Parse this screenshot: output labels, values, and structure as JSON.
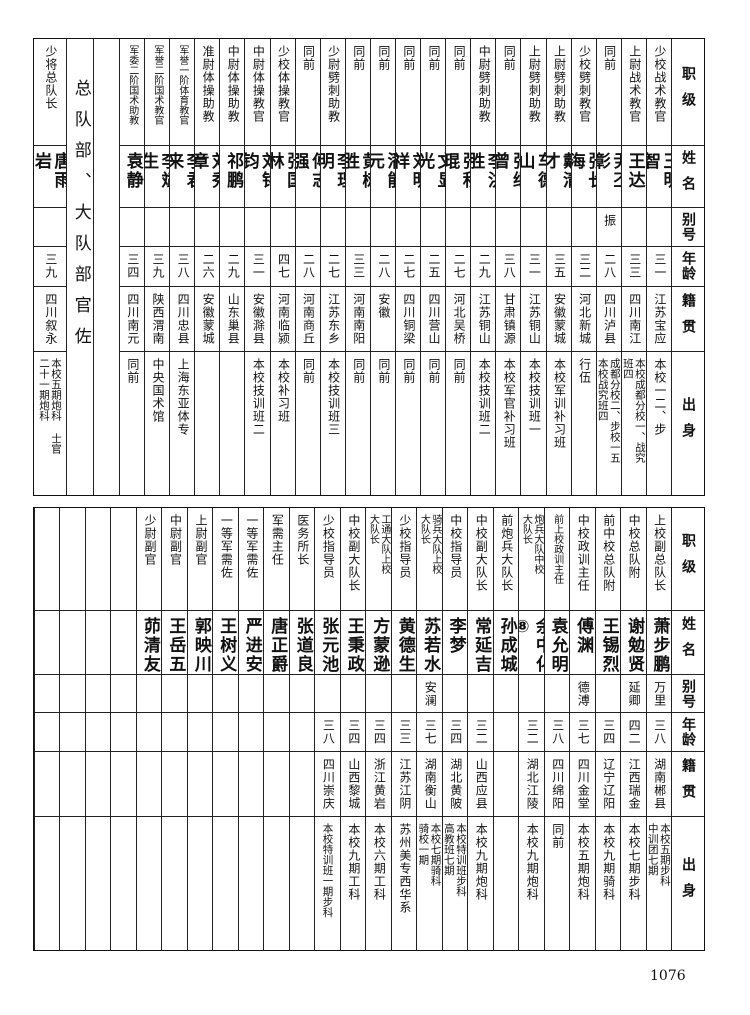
{
  "header": [
    "职级",
    "姓名",
    "别号",
    "年龄",
    "籍贯",
    "出身"
  ],
  "top": {
    "columns": [
      {
        "rank": "少校战术教官",
        "name": "王明智",
        "alias": "",
        "age": "三一",
        "native": "江苏宝应",
        "origin": "本校一二、步"
      },
      {
        "rank": "上尉战术教官",
        "name": "王达",
        "alias": "",
        "age": "三三",
        "native": "四川南江",
        "origin": "本校成都分校一、战究\n班四"
      },
      {
        "rank": "同前",
        "name": "尹丕彰",
        "alias": "振",
        "age": "二八",
        "native": "四川泸县",
        "origin": "成都分校二、步校一五\n本校战究班四"
      },
      {
        "rank": "少校劈刺教官",
        "name": "张长海",
        "alias": "",
        "age": "三二",
        "native": "河北新城",
        "origin": "行伍"
      },
      {
        "rank": "上尉劈刺助教",
        "name": "戴清才",
        "alias": "",
        "age": "三五",
        "native": "安徽蒙城",
        "origin": "本校军训补习班"
      },
      {
        "rank": "上尉劈刺助教",
        "name": "车德山",
        "alias": "",
        "age": "三一",
        "native": "江苏铜山",
        "origin": "本校技训班一"
      },
      {
        "rank": "同前",
        "name": "张继曾",
        "alias": "",
        "age": "三八",
        "native": "甘肃镇源",
        "origin": "本校军官补习班"
      },
      {
        "rank": "中尉劈刺助教",
        "name": "李洪胜",
        "alias": "",
        "age": "二九",
        "native": "江苏铜山",
        "origin": "本校技训班二"
      },
      {
        "rank": "同前",
        "name": "张积琨",
        "alias": "",
        "age": "二七",
        "native": "河北吴桥",
        "origin": "同前"
      },
      {
        "rank": "同前",
        "name": "文显光",
        "alias": "",
        "age": "二五",
        "native": "四川营山",
        "origin": "同前"
      },
      {
        "rank": "同前",
        "name": "刘明祥",
        "alias": "",
        "age": "二七",
        "native": "四川铜梁",
        "origin": "同前"
      },
      {
        "rank": "同前",
        "name": "潘能元",
        "alias": "",
        "age": "二八",
        "native": "安徽",
        "origin": "同前"
      },
      {
        "rank": "同前",
        "name": "黄树胜",
        "alias": "",
        "age": "三三",
        "native": "河南南阳",
        "origin": "同前"
      },
      {
        "rank": "少尉劈刺助教",
        "name": "李理明",
        "alias": "",
        "age": "二七",
        "native": "江苏东乡",
        "origin": "本校技训班三"
      },
      {
        "rank": "同前",
        "name": "傅志强",
        "alias": "",
        "age": "二八",
        "native": "河南商丘",
        "origin": "同前"
      },
      {
        "rank": "少校体操教官",
        "name": "张国林",
        "alias": "",
        "age": "四七",
        "native": "河南临颍",
        "origin": "本校补习班"
      },
      {
        "rank": "中尉体操教官",
        "name": "刘铭钧",
        "alias": "",
        "age": "三一",
        "native": "安徽滁县",
        "origin": "本校技训班二"
      },
      {
        "rank": "中尉体操助教",
        "name": "祁鹏",
        "alias": "",
        "age": "二九",
        "native": "山东巢县",
        "origin": ""
      },
      {
        "rank": "准尉体操助教",
        "name": "刘秀章",
        "alias": "",
        "age": "二六",
        "native": "安徽蒙城",
        "origin": ""
      },
      {
        "rank": "军誉一阶体育教官",
        "name": "李君来",
        "alias": "",
        "age": "三八",
        "native": "四川忠县",
        "origin": "上海东亚体专"
      },
      {
        "rank": "军誉二阶国术教官",
        "name": "李斌生",
        "alias": "",
        "age": "三九",
        "native": "陕西渭南",
        "origin": "中央国术馆"
      },
      {
        "rank": "军委二阶国术助教",
        "name": "袁静",
        "alias": "",
        "age": "三四",
        "native": "四川南元",
        "origin": "同前"
      }
    ],
    "section_title": "总队部、大队部官佐",
    "commander": {
      "rank": "少将总队长",
      "name": "唐雨岩",
      "alias": "",
      "age": "三九",
      "native": "四川叙永",
      "origin": "本校五期炮科  士官\n二十一期炮科"
    }
  },
  "bottom": {
    "columns": [
      {
        "rank": "上校副总队长",
        "name": "萧步鹏",
        "alias": "万里",
        "age": "三八",
        "native": "湖南郴县",
        "origin": "本校五期步科\n中训团七期"
      },
      {
        "rank": "中校总队附",
        "name": "谢勉贤",
        "alias": "延卿",
        "age": "四二",
        "native": "江西瑞金",
        "origin": "本校七期步科"
      },
      {
        "rank": "前中校总队附",
        "name": "王锡烈",
        "alias": "",
        "age": "三四",
        "native": "辽宁辽阳",
        "origin": "本校九期骑科"
      },
      {
        "rank": "中校政训主任",
        "name": "傅渊",
        "alias": "德溥",
        "age": "三七",
        "native": "四川金堂",
        "origin": "本校五期炮科"
      },
      {
        "rank": "前上校政训主任",
        "name": "袁允明",
        "alias": "",
        "age": "三八",
        "native": "四川绵阳",
        "origin": "同前"
      },
      {
        "rank": "炮兵大队中校\n大队长",
        "name": "余中化⑧",
        "alias": "",
        "age": "三二",
        "native": "湖北江陵",
        "origin": "本校九期炮科"
      },
      {
        "rank": "前炮兵大队长",
        "name": "孙成城",
        "alias": "",
        "age": "",
        "native": "",
        "origin": ""
      },
      {
        "rank": "中校副大队长",
        "name": "常延吉",
        "alias": "",
        "age": "三二",
        "native": "山西应县",
        "origin": "本校九期炮科"
      },
      {
        "rank": "中校指导员",
        "name": "李梦",
        "alias": "",
        "age": "三四",
        "native": "湖北黄陂",
        "origin": "本校特训班步科\n高教班七期"
      },
      {
        "rank": "骑兵大队上校\n大队长",
        "name": "苏若水",
        "alias": "安澜",
        "age": "三七",
        "native": "湖南衡山",
        "origin": "本校七期骑科\n骑校一期"
      },
      {
        "rank": "少校指导员",
        "name": "黄德生",
        "alias": "",
        "age": "三三",
        "native": "江苏江阴",
        "origin": "苏州美专西华系"
      },
      {
        "rank": "工通大队上校\n大队长",
        "name": "方蒙逊",
        "alias": "",
        "age": "三四",
        "native": "浙江黄岩",
        "origin": "本校六期工科"
      },
      {
        "rank": "中校副大队长",
        "name": "王秉政",
        "alias": "",
        "age": "三四",
        "native": "山西黎城",
        "origin": "本校九期工科"
      },
      {
        "rank": "少校指导员",
        "name": "张元池",
        "alias": "",
        "age": "三八",
        "native": "四川崇庆",
        "origin": "本校特训班一期步科"
      },
      {
        "rank": "医务所长",
        "name": "张道良",
        "alias": "",
        "age": "",
        "native": "",
        "origin": ""
      },
      {
        "rank": "军需主任",
        "name": "唐正爵",
        "alias": "",
        "age": "",
        "native": "",
        "origin": ""
      },
      {
        "rank": "一等军需佐",
        "name": "严进安",
        "alias": "",
        "age": "",
        "native": "",
        "origin": ""
      },
      {
        "rank": "一等军需佐",
        "name": "王树义",
        "alias": "",
        "age": "",
        "native": "",
        "origin": ""
      },
      {
        "rank": "上尉副官",
        "name": "郭映川",
        "alias": "",
        "age": "",
        "native": "",
        "origin": ""
      },
      {
        "rank": "中尉副官",
        "name": "王岳五",
        "alias": "",
        "age": "",
        "native": "",
        "origin": ""
      },
      {
        "rank": "少尉副官",
        "name": "茆清友",
        "alias": "",
        "age": "",
        "native": "",
        "origin": ""
      }
    ]
  },
  "page_number": "1076"
}
